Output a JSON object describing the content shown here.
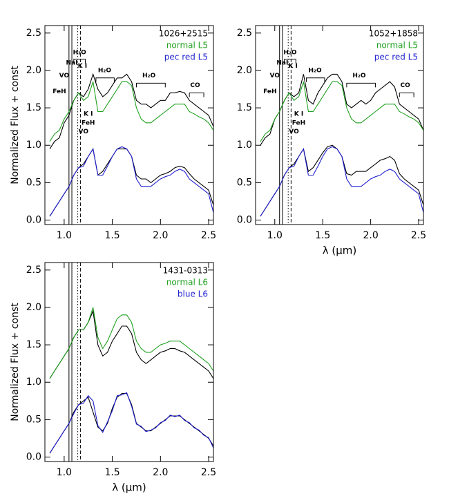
{
  "chart_data": [
    {
      "type": "line",
      "ylabel": "Normalized Flux + const",
      "x": [
        0.85,
        0.9,
        0.95,
        1.0,
        1.05,
        1.1,
        1.15,
        1.2,
        1.25,
        1.3,
        1.35,
        1.4,
        1.45,
        1.5,
        1.55,
        1.6,
        1.65,
        1.7,
        1.75,
        1.8,
        1.85,
        1.9,
        1.95,
        2.0,
        2.05,
        2.1,
        2.15,
        2.2,
        2.25,
        2.3,
        2.35,
        2.4,
        2.45,
        2.5,
        2.55
      ],
      "series": [
        {
          "name": "1026+2515",
          "color": "#000000",
          "values": [
            0.95,
            1.05,
            1.1,
            1.3,
            1.4,
            1.6,
            1.7,
            1.65,
            1.75,
            1.95,
            1.75,
            1.65,
            1.7,
            1.8,
            1.9,
            1.9,
            1.95,
            1.85,
            1.6,
            1.55,
            1.55,
            1.5,
            1.55,
            1.6,
            1.6,
            1.7,
            1.7,
            1.72,
            1.7,
            1.6,
            1.55,
            1.5,
            1.45,
            1.4,
            1.25
          ]
        },
        {
          "name": "normal L5",
          "color": "#1fa01f",
          "values": [
            1.05,
            1.15,
            1.2,
            1.35,
            1.45,
            1.6,
            1.7,
            1.6,
            1.65,
            1.85,
            1.45,
            1.45,
            1.55,
            1.65,
            1.75,
            1.85,
            1.85,
            1.8,
            1.5,
            1.35,
            1.3,
            1.3,
            1.35,
            1.4,
            1.45,
            1.5,
            1.55,
            1.55,
            1.55,
            1.45,
            1.42,
            1.38,
            1.35,
            1.3,
            1.2
          ]
        },
        {
          "color": "#000000",
          "values": [
            0.05,
            0.15,
            0.25,
            0.35,
            0.45,
            0.6,
            0.7,
            0.75,
            0.85,
            0.95,
            0.6,
            0.65,
            0.75,
            0.85,
            0.95,
            0.95,
            0.95,
            0.85,
            0.6,
            0.55,
            0.55,
            0.5,
            0.55,
            0.6,
            0.62,
            0.65,
            0.7,
            0.72,
            0.7,
            0.62,
            0.55,
            0.5,
            0.45,
            0.4,
            0.2
          ]
        },
        {
          "name": "pec red L5",
          "color": "#1f1fd0",
          "values": [
            0.05,
            0.15,
            0.25,
            0.35,
            0.45,
            0.6,
            0.7,
            0.72,
            0.85,
            0.95,
            0.6,
            0.6,
            0.72,
            0.85,
            0.95,
            0.98,
            0.95,
            0.85,
            0.55,
            0.45,
            0.45,
            0.45,
            0.5,
            0.55,
            0.58,
            0.6,
            0.65,
            0.68,
            0.65,
            0.55,
            0.5,
            0.45,
            0.4,
            0.35,
            0.1
          ]
        }
      ],
      "vlines": [
        1.05,
        1.08,
        1.14,
        1.17
      ],
      "vline_styles": [
        "solid",
        "solid",
        "dotted",
        "dashed"
      ],
      "annotations": [
        "FeH",
        "VO",
        "NaI",
        "H₂O",
        "K I",
        "H₂O",
        "H₂O",
        "CO",
        "K I",
        "FeH",
        "VO"
      ],
      "xlim": [
        0.8,
        2.55
      ],
      "ylim": [
        -0.06,
        2.6
      ],
      "xticks": [
        {
          "value": 1,
          "label": "1.0"
        },
        1.5,
        {
          "value": 2,
          "label": "2.0"
        },
        2.5
      ],
      "yticks": [
        {
          "value": 0,
          "label": "0.0"
        },
        0.5,
        {
          "value": 1,
          "label": "1.0"
        },
        1.5,
        {
          "value": 2,
          "label": "2.0"
        },
        2.5
      ]
    },
    {
      "type": "line",
      "xlabel": "λ (μm)",
      "x": [
        0.85,
        0.9,
        0.95,
        1.0,
        1.05,
        1.1,
        1.15,
        1.2,
        1.25,
        1.3,
        1.35,
        1.4,
        1.45,
        1.5,
        1.55,
        1.6,
        1.65,
        1.7,
        1.75,
        1.8,
        1.85,
        1.9,
        1.95,
        2.0,
        2.05,
        2.1,
        2.15,
        2.2,
        2.25,
        2.3,
        2.35,
        2.4,
        2.45,
        2.5,
        2.55
      ],
      "series": [
        {
          "name": "1052+1858",
          "color": "#000000",
          "values": [
            1.0,
            1.1,
            1.15,
            1.35,
            1.45,
            1.6,
            1.7,
            1.65,
            1.7,
            1.95,
            1.6,
            1.55,
            1.7,
            1.8,
            1.9,
            1.95,
            1.95,
            1.85,
            1.55,
            1.5,
            1.55,
            1.6,
            1.55,
            1.6,
            1.7,
            1.75,
            1.8,
            1.85,
            1.78,
            1.55,
            1.5,
            1.45,
            1.4,
            1.35,
            1.2
          ]
        },
        {
          "name": "normal L5",
          "color": "#1fa01f",
          "values": [
            1.05,
            1.15,
            1.2,
            1.35,
            1.45,
            1.6,
            1.7,
            1.6,
            1.65,
            1.85,
            1.45,
            1.45,
            1.55,
            1.65,
            1.75,
            1.85,
            1.85,
            1.8,
            1.5,
            1.35,
            1.3,
            1.3,
            1.35,
            1.4,
            1.45,
            1.5,
            1.55,
            1.55,
            1.55,
            1.45,
            1.42,
            1.38,
            1.35,
            1.3,
            1.2
          ]
        },
        {
          "color": "#000000",
          "values": [
            0.05,
            0.15,
            0.25,
            0.35,
            0.45,
            0.6,
            0.7,
            0.75,
            0.85,
            0.95,
            0.65,
            0.7,
            0.8,
            0.9,
            0.98,
            1.0,
            0.95,
            0.85,
            0.62,
            0.6,
            0.65,
            0.65,
            0.65,
            0.7,
            0.75,
            0.8,
            0.82,
            0.85,
            0.8,
            0.62,
            0.55,
            0.5,
            0.45,
            0.4,
            0.2
          ]
        },
        {
          "name": "pec red L5",
          "color": "#1f1fd0",
          "values": [
            0.05,
            0.15,
            0.25,
            0.35,
            0.45,
            0.6,
            0.7,
            0.72,
            0.85,
            0.95,
            0.6,
            0.6,
            0.72,
            0.85,
            0.95,
            0.98,
            0.95,
            0.85,
            0.55,
            0.45,
            0.45,
            0.45,
            0.5,
            0.55,
            0.58,
            0.6,
            0.65,
            0.68,
            0.65,
            0.55,
            0.5,
            0.45,
            0.4,
            0.35,
            0.1
          ]
        }
      ],
      "vlines": [
        1.05,
        1.08,
        1.14,
        1.17
      ],
      "vline_styles": [
        "solid",
        "solid",
        "dotted",
        "dashed"
      ],
      "annotations": [
        "FeH",
        "VO",
        "NaI",
        "H₂O",
        "K I",
        "H₂O",
        "H₂O",
        "CO",
        "K I",
        "FeH",
        "VO"
      ],
      "xlim": [
        0.8,
        2.55
      ],
      "ylim": [
        -0.06,
        2.6
      ],
      "xticks": [
        {
          "value": 1,
          "label": "1.0"
        },
        1.5,
        {
          "value": 2,
          "label": "2.0"
        },
        2.5
      ],
      "yticks": [
        {
          "value": 0,
          "label": "0.0"
        },
        0.5,
        {
          "value": 1,
          "label": "1.0"
        },
        1.5,
        {
          "value": 2,
          "label": "2.0"
        },
        2.5
      ]
    },
    {
      "type": "line",
      "xlabel": "λ (μm)",
      "ylabel": "Normalized Flux + const",
      "x": [
        0.85,
        0.9,
        0.95,
        1.0,
        1.05,
        1.1,
        1.15,
        1.2,
        1.25,
        1.3,
        1.35,
        1.4,
        1.45,
        1.5,
        1.55,
        1.6,
        1.65,
        1.7,
        1.75,
        1.8,
        1.85,
        1.9,
        1.95,
        2.0,
        2.05,
        2.1,
        2.15,
        2.2,
        2.25,
        2.3,
        2.35,
        2.4,
        2.45,
        2.5,
        2.55
      ],
      "series": [
        {
          "name": "1431-0313",
          "color": "#000000",
          "values": [
            1.05,
            1.15,
            1.25,
            1.35,
            1.45,
            1.6,
            1.7,
            1.7,
            1.8,
            1.95,
            1.5,
            1.35,
            1.4,
            1.55,
            1.65,
            1.75,
            1.75,
            1.65,
            1.4,
            1.3,
            1.25,
            1.3,
            1.35,
            1.4,
            1.42,
            1.45,
            1.45,
            1.42,
            1.4,
            1.35,
            1.3,
            1.25,
            1.2,
            1.15,
            1.05
          ]
        },
        {
          "name": "normal L6",
          "color": "#1fa01f",
          "values": [
            1.05,
            1.15,
            1.25,
            1.35,
            1.45,
            1.6,
            1.7,
            1.7,
            1.8,
            2.0,
            1.6,
            1.45,
            1.55,
            1.7,
            1.85,
            1.9,
            1.9,
            1.8,
            1.55,
            1.45,
            1.4,
            1.4,
            1.45,
            1.5,
            1.52,
            1.55,
            1.55,
            1.55,
            1.5,
            1.45,
            1.4,
            1.35,
            1.3,
            1.25,
            1.15
          ]
        },
        {
          "color": "#000000",
          "values": [
            0.05,
            0.15,
            0.25,
            0.35,
            0.45,
            0.6,
            0.7,
            0.75,
            0.8,
            0.6,
            0.4,
            0.35,
            0.45,
            0.65,
            0.8,
            0.85,
            0.85,
            0.7,
            0.45,
            0.4,
            0.35,
            0.35,
            0.4,
            0.45,
            0.5,
            0.55,
            0.55,
            0.55,
            0.5,
            0.45,
            0.4,
            0.35,
            0.3,
            0.25,
            0.15
          ]
        },
        {
          "name": "blue L6",
          "color": "#1f1fd0",
          "values": [
            0.05,
            0.15,
            0.25,
            0.35,
            0.45,
            0.58,
            0.7,
            0.72,
            0.82,
            0.75,
            0.42,
            0.33,
            0.47,
            0.62,
            0.82,
            0.83,
            0.86,
            0.68,
            0.44,
            0.41,
            0.34,
            0.36,
            0.39,
            0.46,
            0.49,
            0.56,
            0.54,
            0.56,
            0.49,
            0.46,
            0.39,
            0.36,
            0.29,
            0.26,
            0.12
          ]
        }
      ],
      "vlines": [
        1.05,
        1.08,
        1.14,
        1.17
      ],
      "vline_styles": [
        "solid",
        "solid",
        "dotted",
        "dashed"
      ],
      "xlim": [
        0.8,
        2.55
      ],
      "ylim": [
        -0.06,
        2.6
      ],
      "xticks": [
        {
          "value": 1,
          "label": "1.0"
        },
        1.5,
        {
          "value": 2,
          "label": "2.0"
        },
        2.5
      ],
      "yticks": [
        {
          "value": 0,
          "label": "0.0"
        },
        0.5,
        {
          "value": 1,
          "label": "1.0"
        },
        1.5,
        {
          "value": 2,
          "label": "2.0"
        },
        2.5
      ]
    }
  ]
}
